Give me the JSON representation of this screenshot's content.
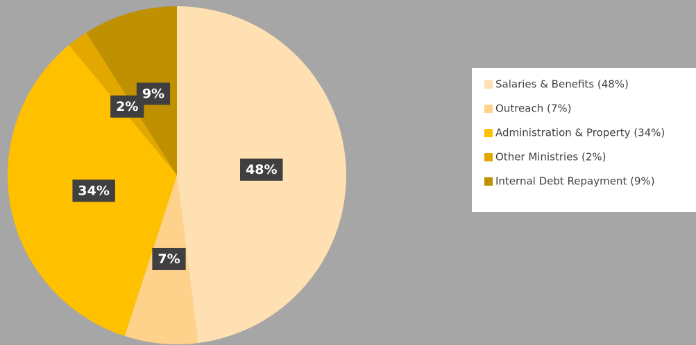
{
  "chart_data": {
    "type": "pie",
    "categories": [
      "Salaries & Benefits (48%)",
      "Outreach (7%)",
      "Administration & Property (34%)",
      "Other Ministries (2%)",
      "Internal Debt Repayment (9%)"
    ],
    "values": [
      48,
      7,
      34,
      2,
      9
    ],
    "value_labels": [
      "48%",
      "7%",
      "34%",
      "2%",
      "9%"
    ],
    "colors": [
      "#ffe0b3",
      "#ffd28c",
      "#ffc000",
      "#e2a800",
      "#bf9000"
    ],
    "legend": "right"
  }
}
